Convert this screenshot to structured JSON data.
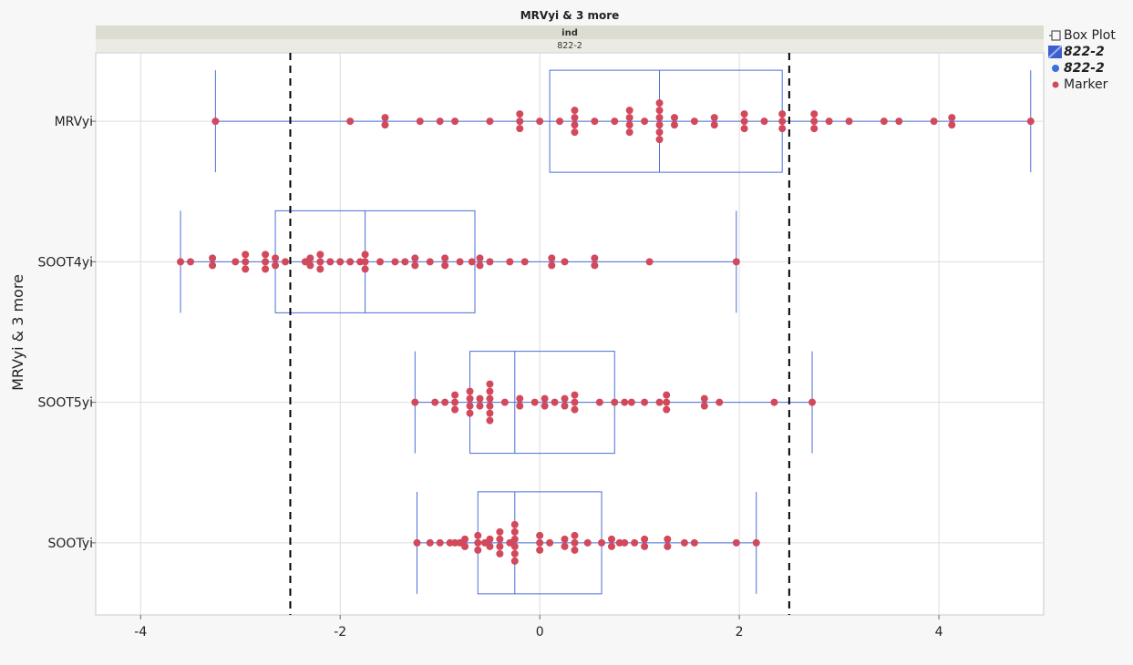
{
  "chart_data": {
    "type": "box_plot",
    "title": "MRVyi & 3 more",
    "group_header": "ind",
    "group_value": "822-2",
    "ylabel": "MRVyi & 3 more",
    "xlabel": "",
    "xlim": [
      -4.45,
      5.05
    ],
    "xticks": [
      -4,
      -2,
      0,
      2,
      4
    ],
    "xtick_labels": [
      "-4",
      "-2",
      "0",
      "2",
      "4"
    ],
    "reference_lines": [
      -2.5,
      2.5
    ],
    "grid": true,
    "legend_position": "right",
    "colors": {
      "box": "#4a6fd6",
      "marker": "#d2495c",
      "reference": "#000000",
      "grid": "#dddddd"
    },
    "categories": [
      "MRVyi",
      "SOOT4yi",
      "SOOT5yi",
      "SOOTyi"
    ],
    "series": [
      {
        "category": "MRVyi",
        "min": -3.25,
        "q1": 0.1,
        "median": 1.2,
        "q3": 2.43,
        "max": 4.92,
        "points": [
          -3.25,
          -1.9,
          -1.55,
          -1.55,
          -1.2,
          -1.0,
          -0.85,
          -0.5,
          -0.2,
          -0.2,
          -0.2,
          0.0,
          0.2,
          0.35,
          0.35,
          0.35,
          0.35,
          0.55,
          0.75,
          0.9,
          0.9,
          0.9,
          0.9,
          1.05,
          1.2,
          1.2,
          1.2,
          1.2,
          1.2,
          1.2,
          1.35,
          1.35,
          1.55,
          1.75,
          1.75,
          2.05,
          2.05,
          2.05,
          2.25,
          2.43,
          2.43,
          2.43,
          2.75,
          2.75,
          2.75,
          2.9,
          3.1,
          3.45,
          3.6,
          3.95,
          4.13,
          4.13,
          4.92
        ]
      },
      {
        "category": "SOOT4yi",
        "min": -3.6,
        "q1": -2.65,
        "median": -1.75,
        "q3": -0.65,
        "max": 1.97,
        "points": [
          -3.6,
          -3.5,
          -3.28,
          -3.28,
          -3.05,
          -2.95,
          -2.95,
          -2.95,
          -2.75,
          -2.75,
          -2.75,
          -2.65,
          -2.65,
          -2.55,
          -2.35,
          -2.3,
          -2.3,
          -2.2,
          -2.2,
          -2.2,
          -2.1,
          -2.0,
          -1.9,
          -1.8,
          -1.75,
          -1.75,
          -1.75,
          -1.6,
          -1.45,
          -1.35,
          -1.25,
          -1.25,
          -1.1,
          -0.95,
          -0.95,
          -0.8,
          -0.68,
          -0.6,
          -0.6,
          -0.5,
          -0.3,
          -0.15,
          0.12,
          0.12,
          0.25,
          0.55,
          0.55,
          1.1,
          1.97
        ]
      },
      {
        "category": "SOOT5yi",
        "min": -1.25,
        "q1": -0.7,
        "median": -0.25,
        "q3": 0.75,
        "max": 2.73,
        "points": [
          -1.25,
          -1.05,
          -0.95,
          -0.85,
          -0.85,
          -0.85,
          -0.7,
          -0.7,
          -0.7,
          -0.7,
          -0.6,
          -0.6,
          -0.5,
          -0.5,
          -0.5,
          -0.5,
          -0.5,
          -0.5,
          -0.35,
          -0.2,
          -0.2,
          -0.05,
          0.05,
          0.05,
          0.15,
          0.25,
          0.25,
          0.35,
          0.35,
          0.35,
          0.6,
          0.75,
          0.85,
          0.92,
          1.05,
          1.2,
          1.27,
          1.27,
          1.27,
          1.65,
          1.65,
          1.8,
          2.35,
          2.73
        ]
      },
      {
        "category": "SOOTyi",
        "min": -1.23,
        "q1": -0.62,
        "median": -0.25,
        "q3": 0.62,
        "max": 2.17,
        "points": [
          -1.23,
          -1.1,
          -1.0,
          -0.9,
          -0.85,
          -0.8,
          -0.75,
          -0.75,
          -0.62,
          -0.62,
          -0.62,
          -0.55,
          -0.5,
          -0.5,
          -0.4,
          -0.4,
          -0.4,
          -0.4,
          -0.3,
          -0.25,
          -0.25,
          -0.25,
          -0.25,
          -0.25,
          -0.25,
          0.0,
          0.0,
          0.0,
          0.1,
          0.25,
          0.25,
          0.35,
          0.35,
          0.35,
          0.48,
          0.62,
          0.72,
          0.72,
          0.8,
          0.85,
          0.95,
          1.05,
          1.05,
          1.28,
          1.28,
          1.45,
          1.55,
          1.97,
          2.17
        ]
      }
    ]
  },
  "legend": {
    "items": [
      {
        "label": "Box Plot",
        "icon": "box-plot-icon"
      },
      {
        "label": "822-2",
        "icon": "blue-box-swatch-icon",
        "style": "bold-italic"
      },
      {
        "label": "822-2",
        "icon": "blue-dot-icon",
        "style": "bold-italic"
      },
      {
        "label": "Marker",
        "icon": "red-dot-icon"
      }
    ]
  }
}
